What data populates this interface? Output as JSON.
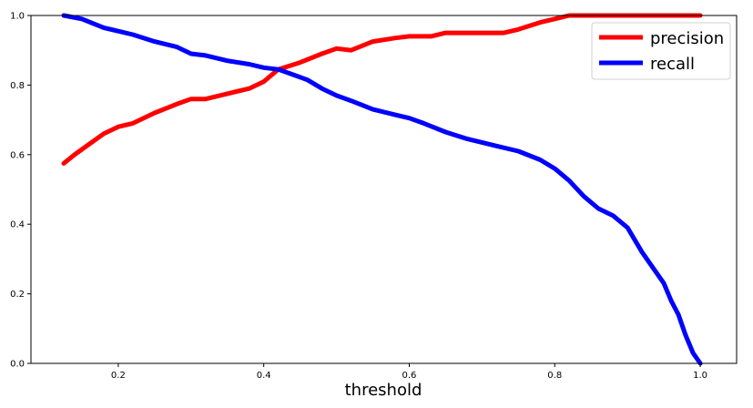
{
  "chart_data": {
    "type": "line",
    "title": "",
    "xlabel": "threshold",
    "ylabel": "",
    "xlim": [
      0.08,
      1.05
    ],
    "ylim": [
      0.0,
      1.0
    ],
    "xticks": [
      0.2,
      0.4,
      0.6,
      0.8,
      1.0
    ],
    "xtick_labels": [
      "0.2",
      "0.4",
      "0.6",
      "0.8",
      "1.0"
    ],
    "yticks": [
      0.0,
      0.2,
      0.4,
      0.6,
      0.8,
      1.0
    ],
    "ytick_labels": [
      "0.0",
      "0.2",
      "0.4",
      "0.6",
      "0.8",
      "1.0"
    ],
    "grid": false,
    "legend_position": "top-right",
    "series": [
      {
        "name": "precision",
        "color": "#ff0000",
        "x": [
          0.125,
          0.14,
          0.16,
          0.18,
          0.2,
          0.22,
          0.25,
          0.28,
          0.3,
          0.32,
          0.35,
          0.38,
          0.4,
          0.42,
          0.45,
          0.48,
          0.5,
          0.52,
          0.55,
          0.58,
          0.6,
          0.63,
          0.65,
          0.7,
          0.73,
          0.75,
          0.78,
          0.8,
          0.82,
          0.85,
          0.9,
          0.95,
          1.0
        ],
        "y": [
          0.575,
          0.6,
          0.63,
          0.66,
          0.68,
          0.69,
          0.72,
          0.745,
          0.76,
          0.76,
          0.775,
          0.79,
          0.81,
          0.845,
          0.865,
          0.89,
          0.905,
          0.9,
          0.925,
          0.935,
          0.94,
          0.94,
          0.95,
          0.95,
          0.95,
          0.96,
          0.98,
          0.99,
          1.0,
          1.0,
          1.0,
          1.0,
          1.0
        ]
      },
      {
        "name": "recall",
        "color": "#0000ff",
        "x": [
          0.125,
          0.15,
          0.18,
          0.2,
          0.22,
          0.25,
          0.28,
          0.3,
          0.32,
          0.35,
          0.38,
          0.4,
          0.42,
          0.44,
          0.46,
          0.48,
          0.5,
          0.52,
          0.55,
          0.58,
          0.6,
          0.62,
          0.65,
          0.68,
          0.7,
          0.72,
          0.75,
          0.78,
          0.8,
          0.82,
          0.84,
          0.86,
          0.88,
          0.9,
          0.92,
          0.94,
          0.95,
          0.96,
          0.97,
          0.98,
          0.99,
          1.0
        ],
        "y": [
          1.0,
          0.99,
          0.965,
          0.955,
          0.945,
          0.925,
          0.91,
          0.89,
          0.885,
          0.87,
          0.86,
          0.85,
          0.845,
          0.83,
          0.815,
          0.79,
          0.77,
          0.755,
          0.73,
          0.715,
          0.705,
          0.69,
          0.665,
          0.645,
          0.635,
          0.625,
          0.61,
          0.585,
          0.56,
          0.525,
          0.48,
          0.445,
          0.425,
          0.39,
          0.32,
          0.26,
          0.23,
          0.18,
          0.14,
          0.08,
          0.03,
          0.0
        ]
      }
    ]
  }
}
